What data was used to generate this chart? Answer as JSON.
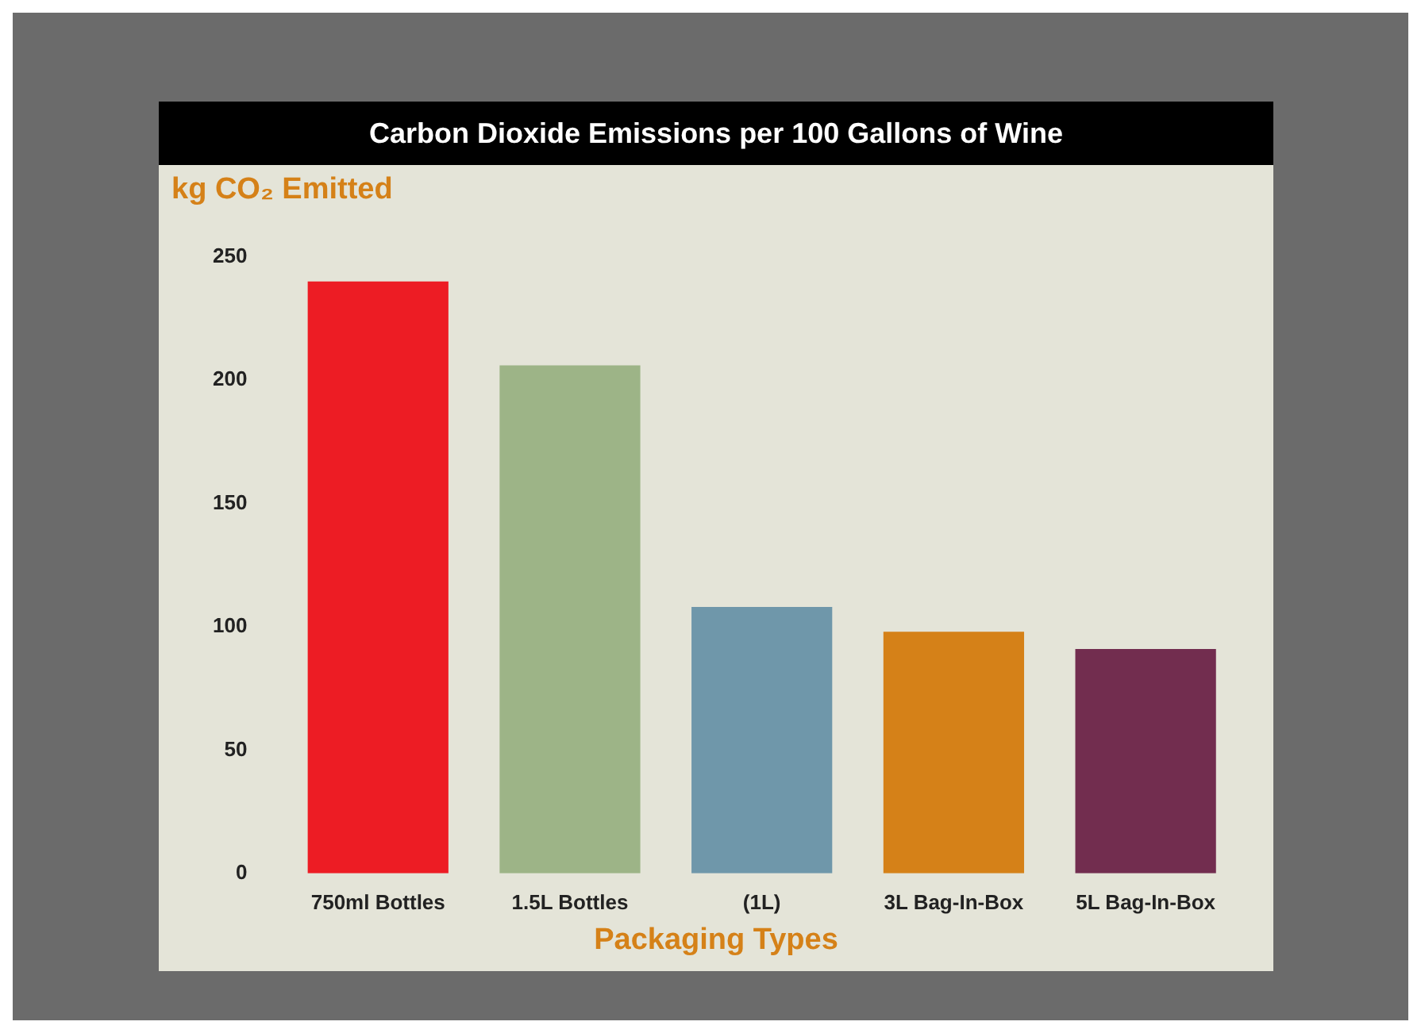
{
  "chart_data": {
    "type": "bar",
    "title": "Carbon Dioxide Emissions per 100 Gallons of Wine",
    "ylabel": "kg CO₂ Emitted",
    "xlabel": "Packaging Types",
    "categories": [
      "750ml Bottles",
      "1.5L Bottles",
      "(1L)",
      "3L Bag-In-Box",
      "5L Bag-In-Box"
    ],
    "values": [
      240,
      206,
      108,
      98,
      91
    ],
    "colors": [
      "#ed1c24",
      "#9db487",
      "#6f97aa",
      "#d58118",
      "#722d4f"
    ],
    "ylim": [
      0,
      250
    ],
    "yticks": [
      0,
      50,
      100,
      150,
      200,
      250
    ],
    "grid": false,
    "legend": false
  }
}
